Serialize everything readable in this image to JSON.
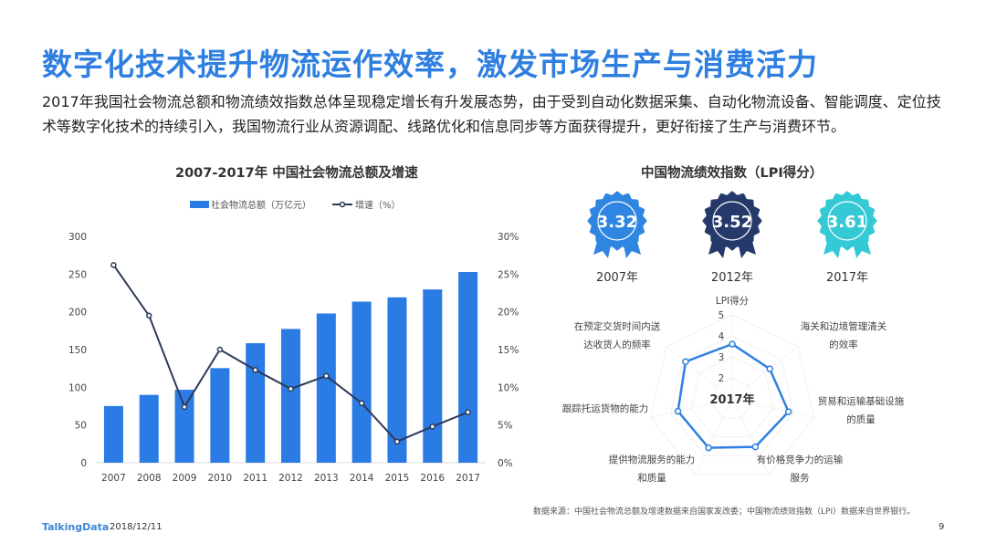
{
  "header": {
    "title": "数字化技术提升物流运作效率，激发市场生产与消费活力",
    "intro": "2017年我国社会物流总额和物流绩效指数总体呈现稳定增长有升发展态势，由于受到自动化数据采集、自动化物流设备、智能调度、定位技术等数字化技术的持续引入，我国物流行业从资源调配、线路优化和信息同步等方面获得提升，更好衔接了生产与消费环节。"
  },
  "chart_data": [
    {
      "type": "bar+line",
      "title": "2007-2017年 中国社会物流总额及增速",
      "categories": [
        "2007",
        "2008",
        "2009",
        "2010",
        "2011",
        "2012",
        "2013",
        "2014",
        "2015",
        "2016",
        "2017"
      ],
      "series": [
        {
          "name": "社会物流总额（万亿元）",
          "type": "bar",
          "axis": "left",
          "color": "#2b7be4",
          "values": [
            75.2,
            89.9,
            96.7,
            125.4,
            158.4,
            177.3,
            197.8,
            213.5,
            219.2,
            229.7,
            252.8
          ]
        },
        {
          "name": "增速（%）",
          "type": "line",
          "axis": "right",
          "color": "#2c3a5a",
          "values": [
            26.2,
            19.5,
            7.4,
            15.0,
            12.3,
            9.8,
            11.5,
            7.9,
            2.8,
            4.8,
            6.7
          ]
        }
      ],
      "ylim": [
        0,
        300
      ],
      "yticks": [
        "0",
        "50",
        "100",
        "150",
        "200",
        "250",
        "300"
      ],
      "y2lim": [
        0,
        30
      ],
      "y2ticks": [
        "0%",
        "5%",
        "10%",
        "15%",
        "20%",
        "25%",
        "30%"
      ],
      "legend": "top",
      "grid": false
    },
    {
      "type": "radar",
      "title": "中国物流绩效指数（LPI得分）",
      "center_label": "2017年",
      "axes": [
        "LPI得分",
        "海关和边境管理清关的效率",
        "贸易和运输基础设施的质量",
        "有价格竞争力的运输服务",
        "提供物流服务的能力和质量",
        "跟踪托运货物的能力",
        "在预定交货时间内送达收货人的频率"
      ],
      "axis_labels": [
        [
          "LPI得分"
        ],
        [
          "海关和边境管理清关",
          "的效率"
        ],
        [
          "贸易和运输基础设施",
          "的质量"
        ],
        [
          "有价格竞争力的运输",
          "服务"
        ],
        [
          "提供物流服务的能力",
          "和质量"
        ],
        [
          "跟踪托运货物的能力"
        ],
        [
          "在预定交货时间内送",
          "达收货人的频率"
        ]
      ],
      "values": [
        3.61,
        3.29,
        3.75,
        3.54,
        3.59,
        3.65,
        3.84
      ],
      "rlim": [
        1,
        5
      ],
      "rticks": [
        "2",
        "3",
        "4",
        "5"
      ],
      "color": "#2f80e0"
    }
  ],
  "badges": [
    {
      "score": "3.32",
      "year": "2007年",
      "color": "#2f86e0"
    },
    {
      "score": "3.52",
      "year": "2012年",
      "color": "#253a6a"
    },
    {
      "score": "3.61",
      "year": "2017年",
      "color": "#35c9d6"
    }
  ],
  "footer": {
    "source": "数据来源：中国社会物流总额及增速数据来自国家发改委；中国物流绩效指数（LPI）数据来自世界银行。",
    "logo": "TalkingData",
    "date": "2018/12/11",
    "page": "9"
  }
}
